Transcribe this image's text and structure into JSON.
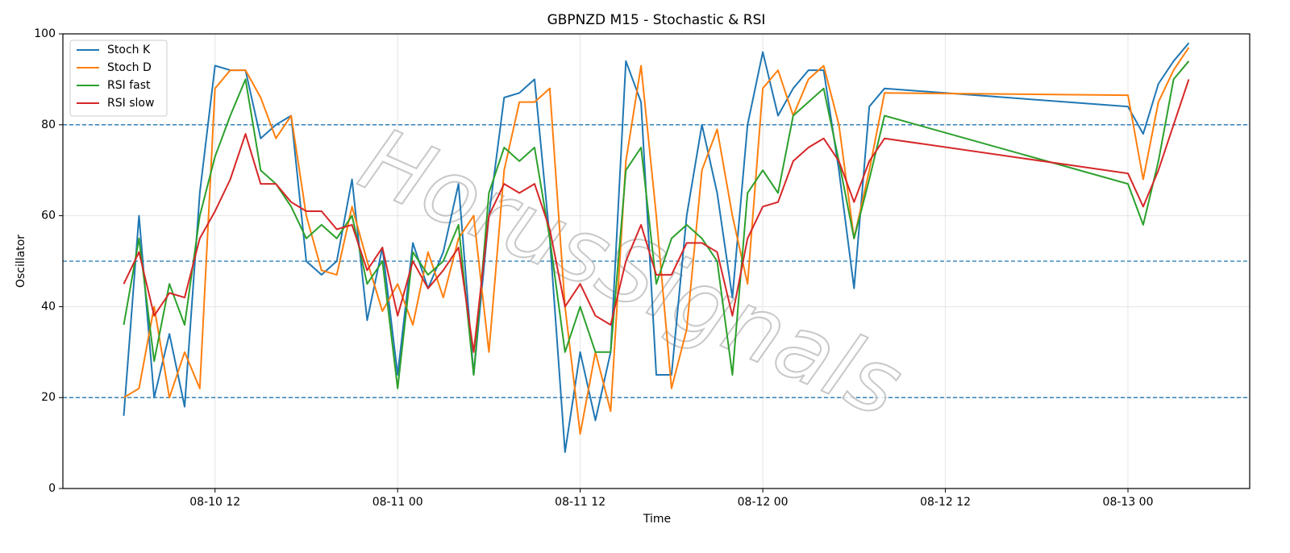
{
  "chart_data": {
    "type": "line",
    "title": "GBPNZD M15 - Stochastic & RSI",
    "x_label": "Time",
    "y_label": "Oscillator",
    "watermark": "HorusSignals",
    "x": [
      "08-10 06",
      "08-10 07",
      "08-10 08",
      "08-10 09",
      "08-10 10",
      "08-10 11",
      "08-10 12",
      "08-10 13",
      "08-10 14",
      "08-10 15",
      "08-10 16",
      "08-10 17",
      "08-10 18",
      "08-10 19",
      "08-10 20",
      "08-10 21",
      "08-10 22",
      "08-10 23",
      "08-11 00",
      "08-11 01",
      "08-11 02",
      "08-11 03",
      "08-11 04",
      "08-11 05",
      "08-11 06",
      "08-11 07",
      "08-11 08",
      "08-11 09",
      "08-11 10",
      "08-11 11",
      "08-11 12",
      "08-11 13",
      "08-11 14",
      "08-11 15",
      "08-11 16",
      "08-11 17",
      "08-11 18",
      "08-11 19",
      "08-11 20",
      "08-11 21",
      "08-11 22",
      "08-11 23",
      "08-12 00",
      "08-12 01",
      "08-12 02",
      "08-12 03",
      "08-12 04",
      "08-12 05",
      "08-12 06",
      "08-12 07",
      "08-12 08",
      "08-13 00",
      "08-13 01",
      "08-13 02",
      "08-13 03",
      "08-13 04"
    ],
    "series": [
      {
        "name": "Stoch K",
        "color": "#1f77b4",
        "values": [
          16,
          60,
          20,
          34,
          18,
          65,
          93,
          92,
          92,
          77,
          80,
          82,
          50,
          47,
          50,
          68,
          37,
          53,
          25,
          54,
          44,
          52,
          67,
          25,
          60,
          86,
          87,
          90,
          55,
          8,
          30,
          15,
          30,
          94,
          85,
          25,
          25,
          60,
          80,
          65,
          42,
          80,
          96,
          82,
          88,
          92,
          92,
          70,
          44,
          84,
          88,
          84,
          78,
          89,
          94,
          98
        ]
      },
      {
        "name": "Stoch D",
        "color": "#ff7f0e",
        "values": [
          20,
          22,
          40,
          20,
          30,
          22,
          88,
          92,
          92,
          86,
          77,
          82,
          60,
          48,
          47,
          62,
          50,
          39,
          45,
          36,
          52,
          42,
          55,
          60,
          30,
          70,
          85,
          85,
          88,
          40,
          12,
          30,
          17,
          72,
          93,
          60,
          22,
          35,
          70,
          79,
          60,
          45,
          88,
          92,
          82,
          90,
          93,
          80,
          55,
          70,
          87,
          86.5,
          68,
          85,
          92,
          97
        ]
      },
      {
        "name": "RSI fast",
        "color": "#2ca02c",
        "values": [
          36,
          55,
          28,
          45,
          36,
          60,
          73,
          82,
          90,
          70,
          67,
          62,
          55,
          58,
          55,
          60,
          45,
          50,
          22,
          52,
          47,
          50,
          58,
          25,
          65,
          75,
          72,
          75,
          55,
          30,
          40,
          30,
          30,
          70,
          75,
          45,
          55,
          58,
          55,
          50,
          25,
          65,
          70,
          65,
          82,
          85,
          88,
          72,
          55,
          68,
          82,
          67,
          58,
          72,
          90,
          94
        ]
      },
      {
        "name": "RSI slow",
        "color": "#d62728",
        "values": [
          45,
          52,
          38,
          43,
          42,
          55,
          61,
          68,
          78,
          67,
          67,
          63,
          61,
          61,
          57,
          58,
          48,
          53,
          38,
          50,
          44,
          48,
          53,
          30,
          60,
          67,
          65,
          67,
          57,
          40,
          45,
          38,
          36,
          50,
          58,
          47,
          47,
          54,
          54,
          52,
          38,
          55,
          62,
          63,
          72,
          75,
          77,
          72,
          63,
          72,
          77,
          69.3,
          62,
          70,
          80,
          90
        ]
      }
    ],
    "xlim": [
      "08-10 02",
      "08-13 08"
    ],
    "xticks": [
      "08-10 12",
      "08-11 00",
      "08-11 12",
      "08-12 00",
      "08-12 12",
      "08-13 00"
    ],
    "ylim": [
      0,
      100
    ],
    "yticks": [
      0,
      20,
      40,
      60,
      80,
      100
    ],
    "hlines": [
      20,
      50,
      80
    ],
    "hline_color": "#1f77b4",
    "grid": true,
    "legend": "upper left"
  }
}
